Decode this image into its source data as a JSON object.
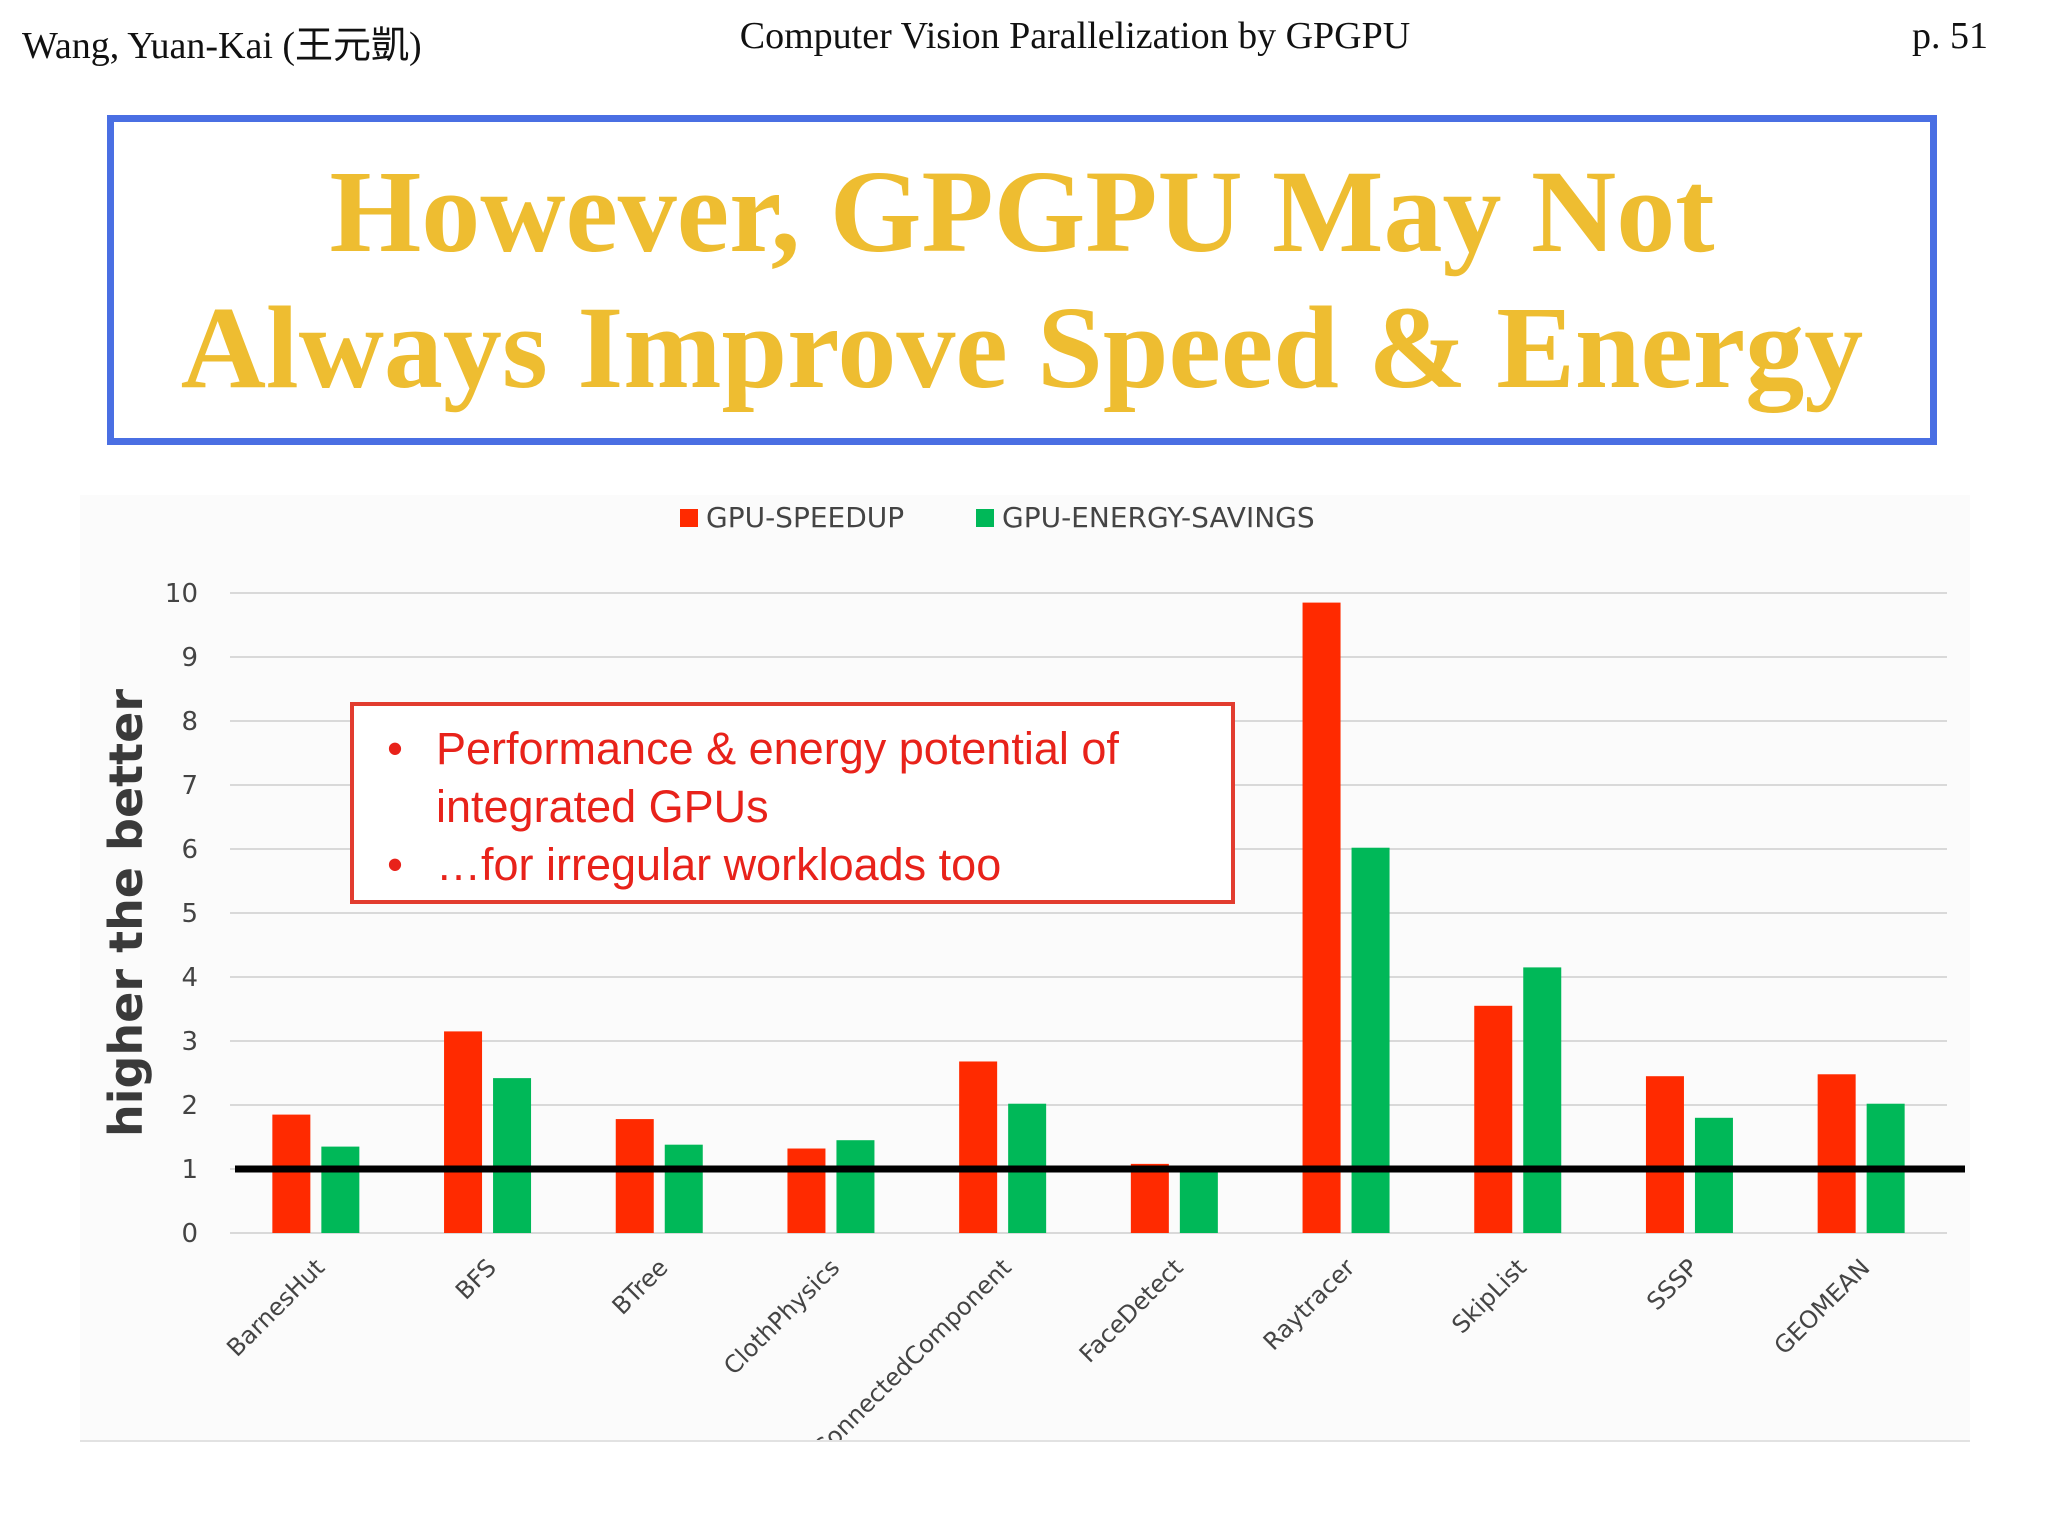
{
  "header": {
    "left": "Wang, Yuan-Kai (王元凱)",
    "center": "Computer Vision Parallelization by GPGPU",
    "right": "p. 51"
  },
  "slide_title": {
    "line1": "However, GPGPU May Not",
    "line2": "Always Improve Speed & Energy"
  },
  "note_box": {
    "bullet": "•",
    "item1_line1": "Performance & energy potential of",
    "item1_line2": "integrated GPUs",
    "item2": "…for irregular workloads too"
  },
  "chart_data": {
    "type": "bar",
    "ylabel": "higher the better",
    "ylim": [
      0,
      10
    ],
    "yticks": [
      0,
      1,
      2,
      3,
      4,
      5,
      6,
      7,
      8,
      9,
      10
    ],
    "grid": true,
    "legend_position": "top-center",
    "reference_line": 1,
    "categories": [
      "BarnesHut",
      "BFS",
      "BTree",
      "ClothPhysics",
      "ConnectedComponent",
      "FaceDetect",
      "Raytracer",
      "SkipList",
      "SSSP",
      "GEOMEAN"
    ],
    "series": [
      {
        "name": "GPU-SPEEDUP",
        "color": "#ff2a00",
        "values": [
          1.85,
          3.15,
          1.78,
          1.32,
          2.68,
          1.08,
          9.85,
          3.55,
          2.45,
          2.48
        ]
      },
      {
        "name": "GPU-ENERGY-SAVINGS",
        "color": "#00b858",
        "values": [
          1.35,
          2.42,
          1.38,
          1.45,
          2.02,
          0.95,
          6.02,
          4.15,
          1.8,
          2.02
        ]
      }
    ]
  }
}
